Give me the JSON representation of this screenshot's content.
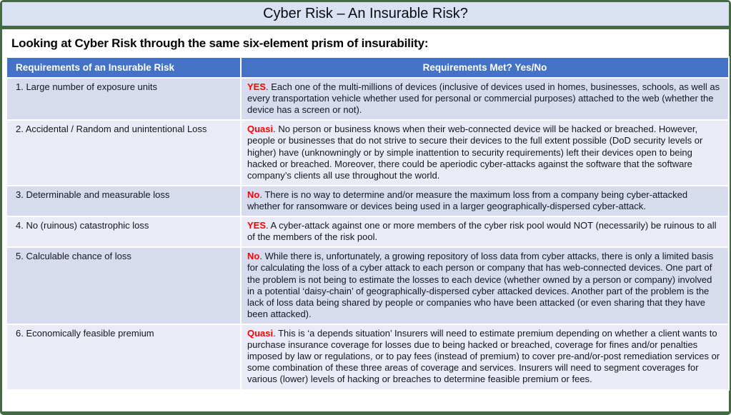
{
  "title": "Cyber Risk – An Insurable Risk?",
  "subtitle": "Looking at Cyber Risk through the same six-element prism of insurability:",
  "table": {
    "headers": [
      "Requirements of an Insurable Risk",
      "Requirements Met? Yes/No"
    ],
    "rows": [
      {
        "requirement": "1. Large number of exposure units",
        "verdict": "YES",
        "explanation": ". Each one of the multi-millions of devices (inclusive of devices used in homes, businesses, schools, as well as every transportation vehicle whether used for personal or commercial purposes) attached to the web (whether the device has a screen or not)."
      },
      {
        "requirement": "2. Accidental / Random and unintentional Loss",
        "verdict": "Quasi",
        "explanation": ". No person or business knows when their web-connected device will be hacked or breached. However, people or businesses that do not strive to secure their devices to the full extent possible (DoD security levels or higher) have (unknowningly or by simple inattention to security requirements) left their devices open to being hacked or breached. Moreover, there could be aperiodic cyber-attacks against the software that the software company’s clients all use throughout the world."
      },
      {
        "requirement": "3. Determinable and measurable loss",
        "verdict": "No",
        "explanation": ". There is no way to determine and/or measure the maximum loss from a company being cyber-attacked whether for ransomware or devices being used in a larger geographically-dispersed cyber-attack."
      },
      {
        "requirement": "4. No (ruinous) catastrophic loss",
        "verdict": "YES",
        "explanation": ". A cyber-attack against one or more members of the cyber risk pool would NOT (necessarily) be ruinous to all of the members of the risk pool."
      },
      {
        "requirement": "5. Calculable chance of loss",
        "verdict": "No",
        "explanation": ". While there is, unfortunately, a growing repository of loss data from cyber attacks, there is only a limited basis for calculating the loss of a cyber attack to each person or company that has web-connected devices. One part of the problem is not being to estimate the losses to each device (whether owned by a person or company) involved in a potential ‘daisy-chain’ of geographically-dispersed cyber attacked devices. Another part of the problem is the lack of loss data being shared by people or companies who have been attacked (or even sharing that they have been attacked)."
      },
      {
        "requirement": "6. Economically feasible premium",
        "verdict": "Quasi",
        "explanation": ". This is ‘a depends situation’ Insurers will need to estimate premium depending on whether a client wants to purchase insurance coverage for losses due to being hacked or breached, coverage for fines and/or penalties imposed by law or regulations, or to pay fees (instead of premium) to cover pre-and/or-post remediation services or some combination of these three areas of coverage and services. Insurers will need to segment coverages for various (lower) levels of hacking or breaches to determine feasible premium or fees."
      }
    ]
  },
  "colors": {
    "frame_green": "#456945",
    "title_bar_bg": "#d9e1f2",
    "table_header_bg": "#4472c4",
    "row_odd_bg": "#d6dcee",
    "row_even_bg": "#e9ecf6",
    "verdict_red": "#ff0000"
  }
}
